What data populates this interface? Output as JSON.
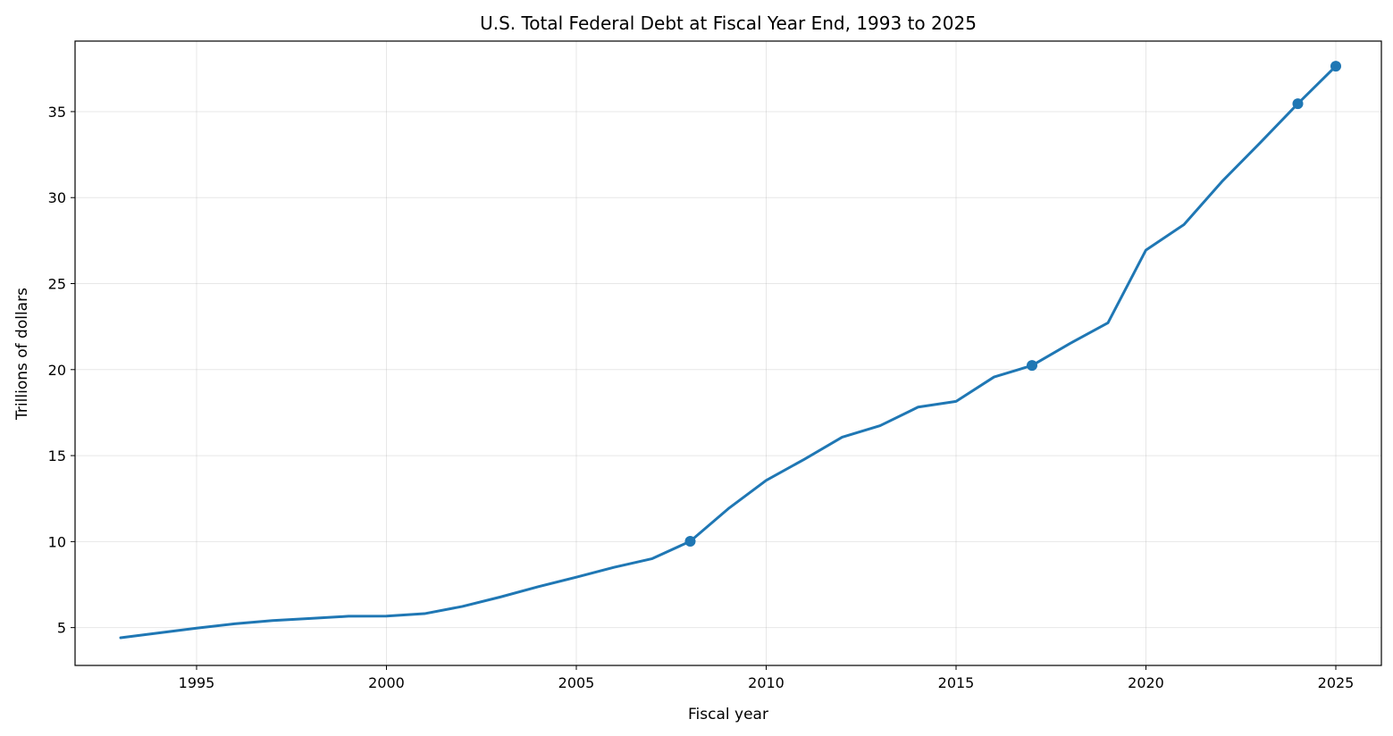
{
  "chart_data": {
    "type": "line",
    "title": "U.S. Total Federal Debt at Fiscal Year End, 1993 to 2025",
    "xlabel": "Fiscal year",
    "ylabel": "Trillions of dollars",
    "xlim": [
      1991.8,
      2026.2
    ],
    "ylim": [
      2.8,
      39.1
    ],
    "xticks": [
      1995,
      2000,
      2005,
      2010,
      2015,
      2020,
      2025
    ],
    "yticks": [
      5,
      10,
      15,
      20,
      25,
      30,
      35
    ],
    "grid": true,
    "line_color": "#1f77b4",
    "series": [
      {
        "x": [
          1993,
          1994,
          1995,
          1996,
          1997,
          1998,
          1999,
          2000,
          2001,
          2002,
          2003,
          2004,
          2005,
          2006,
          2007,
          2008,
          2009,
          2010,
          2011,
          2012,
          2013,
          2014,
          2015,
          2016,
          2017,
          2018,
          2019,
          2020,
          2021,
          2022,
          2023,
          2024,
          2025
        ],
        "values": [
          4.41,
          4.69,
          4.97,
          5.22,
          5.41,
          5.53,
          5.66,
          5.67,
          5.81,
          6.23,
          6.78,
          7.38,
          7.93,
          8.51,
          9.01,
          10.02,
          11.91,
          13.56,
          14.78,
          16.07,
          16.74,
          17.82,
          18.15,
          19.57,
          20.24,
          21.52,
          22.72,
          26.95,
          28.43,
          30.93,
          33.17,
          35.46,
          37.64
        ]
      }
    ],
    "highlighted_points": [
      {
        "x": 2008,
        "y": 10.02
      },
      {
        "x": 2017,
        "y": 20.24
      },
      {
        "x": 2024,
        "y": 35.46
      },
      {
        "x": 2025,
        "y": 37.64
      }
    ]
  }
}
